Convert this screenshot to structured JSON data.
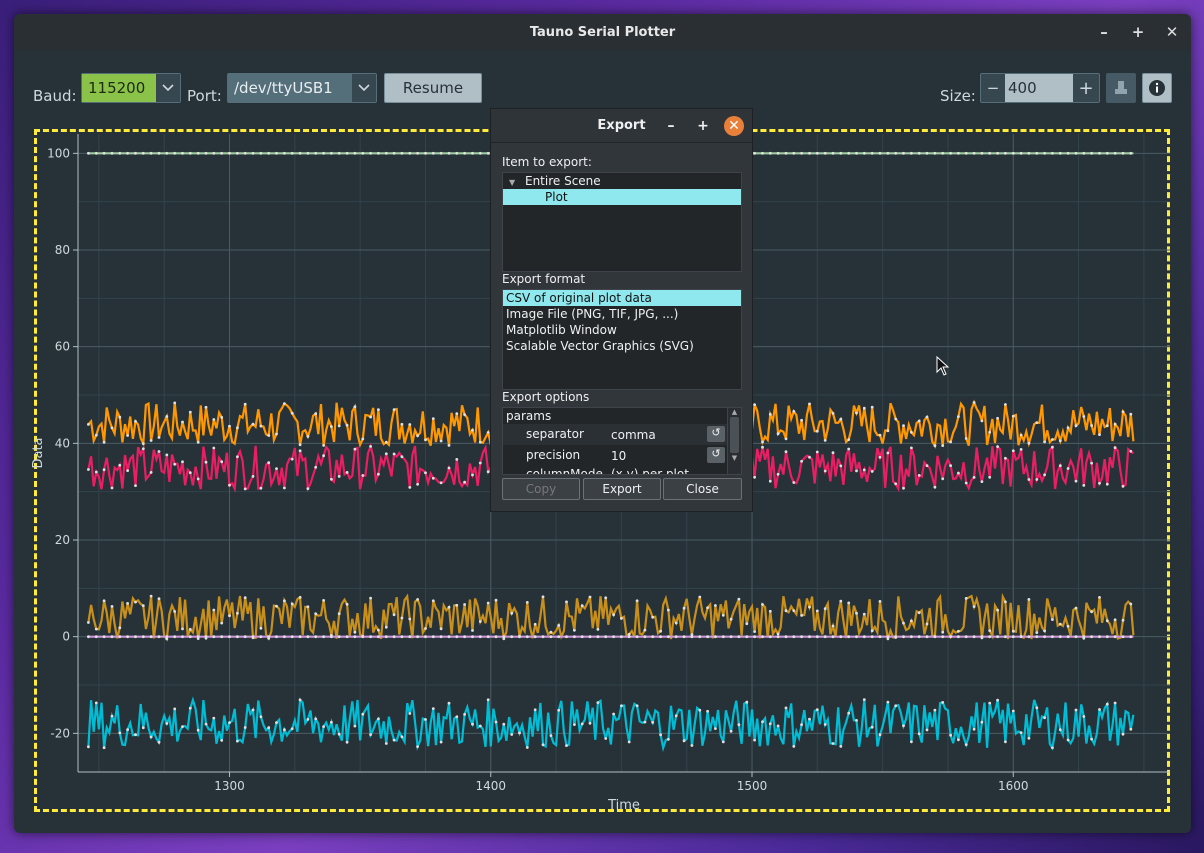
{
  "window": {
    "title": "Tauno Serial Plotter"
  },
  "toolbar": {
    "baud_label": "Baud:",
    "baud_value": "115200",
    "port_label": "Port:",
    "port_value": "/dev/ttyUSB1",
    "resume_label": "Resume",
    "size_label": "Size:",
    "size_value": "400",
    "size_minus": "−",
    "size_plus": "+"
  },
  "colors": {
    "baud_bg": "#8bc34a",
    "accent": "#ffeb3b"
  },
  "dialog": {
    "title": "Export",
    "item_label": "Item to export:",
    "items": [
      "Entire Scene",
      "Plot"
    ],
    "format_label": "Export format",
    "formats": [
      "CSV of original plot data",
      "Image File (PNG, TIF, JPG, ...)",
      "Matplotlib Window",
      "Scalable Vector Graphics (SVG)"
    ],
    "options_label": "Export options",
    "params_label": "params",
    "params": [
      {
        "name": "separator",
        "value": "comma"
      },
      {
        "name": "precision",
        "value": "10"
      },
      {
        "name": "columnMode",
        "value": "(x,y) per plot"
      }
    ],
    "copy_label": "Copy",
    "export_label": "Export",
    "close_label": "Close"
  },
  "chart_data": {
    "type": "line",
    "xlabel": "Time",
    "ylabel": "Data",
    "xlim": [
      1242,
      1660
    ],
    "ylim": [
      -28,
      104
    ],
    "xticks": [
      1300,
      1400,
      1500,
      1600
    ],
    "yticks": [
      -20,
      0,
      20,
      40,
      60,
      80,
      100
    ],
    "grid": true,
    "x_range": [
      1246,
      1646
    ],
    "series": [
      {
        "color": "#9ccc9c",
        "base": 100,
        "amp": 0
      },
      {
        "color": "#ff9800",
        "base": 44,
        "amp": 4.5
      },
      {
        "color": "#e91e63",
        "base": 35,
        "amp": 4.5
      },
      {
        "color": "#c8901a",
        "base": 4,
        "amp": 4.5
      },
      {
        "color": "#ce93d8",
        "base": 0,
        "amp": 0
      },
      {
        "color": "#00bcd4",
        "base": -18,
        "amp": 5
      }
    ]
  }
}
